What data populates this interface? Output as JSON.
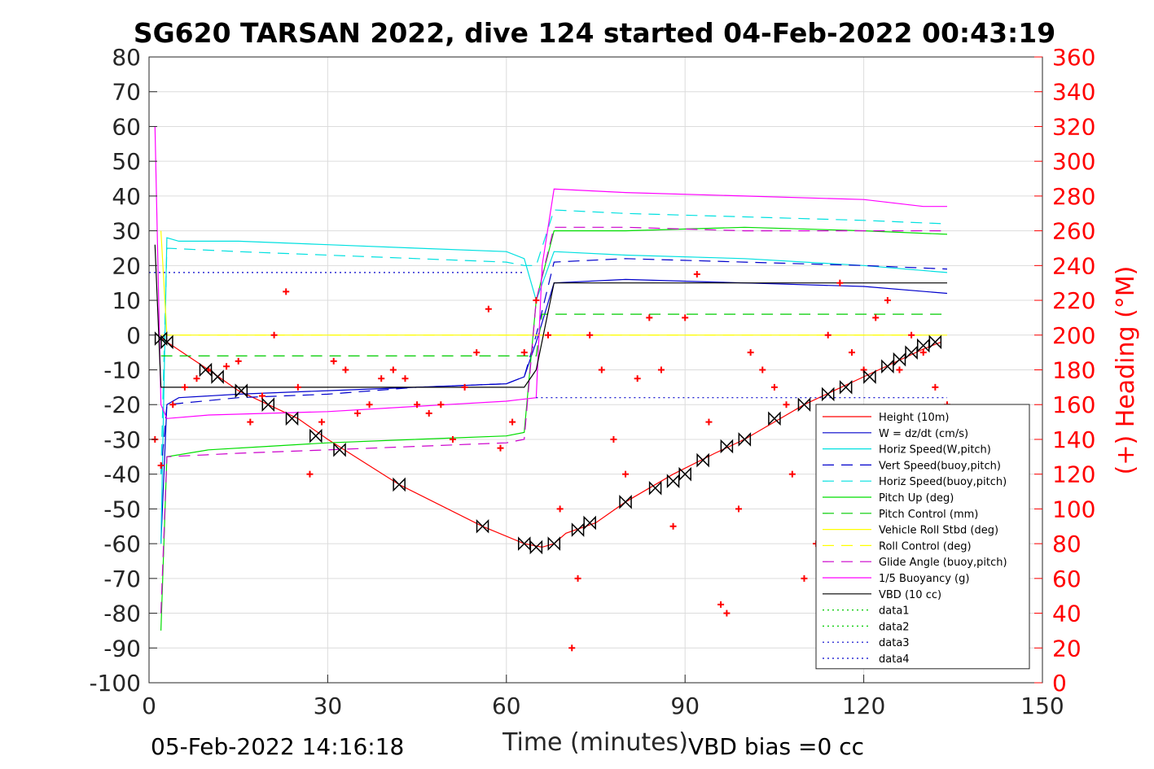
{
  "chart_data": {
    "type": "line",
    "title": "SG620 TARSAN 2022, dive 124 started 04-Feb-2022 00:43:19",
    "xlabel": "Time (minutes)",
    "ylabel": "",
    "y2label": "(+) Heading (°M)",
    "footer_left": "05-Feb-2022 14:16:18",
    "footer_right": "VBD bias =0 cc",
    "xlim": [
      0,
      150
    ],
    "ylim": [
      -100,
      80
    ],
    "y2lim": [
      0,
      360
    ],
    "x_ticks": [
      "0",
      "30",
      "60",
      "90",
      "120",
      "150"
    ],
    "y_ticks": [
      "80",
      "70",
      "60",
      "50",
      "40",
      "30",
      "20",
      "10",
      "0",
      "-10",
      "-20",
      "-30",
      "-40",
      "-50",
      "-60",
      "-70",
      "-80",
      "-90",
      "-100"
    ],
    "y2_ticks": [
      "360",
      "340",
      "320",
      "300",
      "280",
      "260",
      "240",
      "220",
      "200",
      "180",
      "160",
      "140",
      "120",
      "100",
      "80",
      "60",
      "40",
      "20",
      "0"
    ],
    "grid": true,
    "legend_position": "bottom-right",
    "series": [
      {
        "name": "Height (10m)",
        "color": "#ff0000",
        "style": "solid",
        "x": [
          2,
          3,
          10,
          15,
          20,
          25,
          30,
          42,
          56,
          63,
          66,
          68,
          70,
          75,
          80,
          88,
          95,
          100,
          110,
          115,
          120,
          125,
          130,
          133
        ],
        "y": [
          -1,
          -2,
          -10,
          -16,
          -20,
          -24,
          -30,
          -43,
          -55,
          -60,
          -61,
          -60,
          -57,
          -54,
          -48,
          -40,
          -34,
          -30,
          -20,
          -16,
          -12,
          -8,
          -4,
          -2
        ]
      },
      {
        "name": "W = dz/dt (cm/s)",
        "color": "#0000cc",
        "style": "solid",
        "x": [
          2,
          3,
          5,
          15,
          30,
          45,
          60,
          63,
          65,
          68,
          80,
          100,
          120,
          134
        ],
        "y": [
          -60,
          -20,
          -18,
          -17,
          -16,
          -15,
          -14,
          -12,
          -2,
          15,
          16,
          15,
          14,
          12
        ]
      },
      {
        "name": "Horiz Speed(W,pitch)",
        "color": "#00e0e0",
        "style": "solid",
        "x": [
          2,
          3,
          5,
          15,
          30,
          45,
          60,
          63,
          65,
          68,
          80,
          100,
          120,
          134
        ],
        "y": [
          -60,
          28,
          27,
          27,
          26,
          25,
          24,
          22,
          10,
          24,
          23,
          22,
          20,
          18
        ]
      },
      {
        "name": "Vert Speed(buoy,pitch)",
        "color": "#0000cc",
        "style": "dashed",
        "x": [
          2,
          3,
          15,
          30,
          45,
          60,
          63,
          65,
          68,
          80,
          100,
          120,
          134
        ],
        "y": [
          -40,
          -20,
          -18,
          -17,
          -15,
          -14,
          -12,
          0,
          21,
          22,
          21,
          20,
          19
        ]
      },
      {
        "name": "Horiz Speed(buoy,pitch)",
        "color": "#00e0e0",
        "style": "dashed",
        "x": [
          2,
          3,
          15,
          30,
          45,
          60,
          63,
          65,
          68,
          80,
          100,
          120,
          134
        ],
        "y": [
          -40,
          25,
          24,
          23,
          22,
          21,
          20,
          20,
          36,
          35,
          34,
          33,
          32
        ]
      },
      {
        "name": "Pitch Up (deg)",
        "color": "#00dd00",
        "style": "solid",
        "x": [
          2,
          3,
          10,
          20,
          30,
          45,
          60,
          63,
          65,
          68,
          80,
          100,
          120,
          134
        ],
        "y": [
          -85,
          -35,
          -33,
          -32,
          -31,
          -30,
          -29,
          -28,
          10,
          30,
          30,
          31,
          30,
          29
        ]
      },
      {
        "name": "Pitch Control (mm)",
        "color": "#00cc00",
        "style": "dashed",
        "x": [
          2,
          65,
          66,
          134
        ],
        "y": [
          -6,
          -6,
          6,
          6
        ]
      },
      {
        "name": "Vehicle Roll Stbd (deg)",
        "color": "#ffff00",
        "style": "solid",
        "x": [
          2,
          3,
          10,
          20,
          30,
          40,
          50,
          60,
          63,
          70,
          80,
          90,
          100,
          110,
          120,
          130,
          134
        ],
        "y": [
          30,
          0,
          0,
          0,
          0,
          0,
          0,
          0,
          0,
          0,
          0,
          0,
          0,
          0,
          0,
          0,
          0
        ]
      },
      {
        "name": "Roll Control (deg)",
        "color": "#ffff00",
        "style": "dashed",
        "x": [
          2,
          134
        ],
        "y": [
          0,
          0
        ]
      },
      {
        "name": "Glide Angle (buoy,pitch)",
        "color": "#cc00cc",
        "style": "dashed",
        "x": [
          2,
          3,
          15,
          30,
          45,
          60,
          63,
          65,
          68,
          80,
          100,
          120,
          134
        ],
        "y": [
          -80,
          -35,
          -34,
          -33,
          -32,
          -31,
          -30,
          10,
          31,
          31,
          30,
          30,
          30
        ]
      },
      {
        "name": "1/5 Buoyancy (g)",
        "color": "#ff00ff",
        "style": "solid",
        "x": [
          1,
          2,
          3,
          10,
          30,
          50,
          60,
          65,
          66,
          68,
          80,
          100,
          120,
          130,
          134
        ],
        "y": [
          60,
          -20,
          -24,
          -23,
          -22,
          -20,
          -19,
          -18,
          20,
          42,
          41,
          40,
          39,
          37,
          37
        ]
      },
      {
        "name": "VBD (10 cc)",
        "color": "#000000",
        "style": "solid",
        "x": [
          1,
          2,
          3,
          63,
          65,
          68,
          134
        ],
        "y": [
          26,
          -15,
          -15,
          -15,
          -10,
          15,
          15
        ]
      },
      {
        "name": "data1",
        "color": "#00cc00",
        "style": "dotted",
        "x": [],
        "y": []
      },
      {
        "name": "data2",
        "color": "#00cc00",
        "style": "dotted",
        "x": [],
        "y": []
      },
      {
        "name": "data3",
        "color": "#0000cc",
        "style": "dotted",
        "x": [
          0,
          63
        ],
        "y": [
          18,
          18
        ]
      },
      {
        "name": "data4",
        "color": "#0000cc",
        "style": "dotted",
        "x": [
          65,
          134
        ],
        "y": [
          -18,
          -18
        ]
      }
    ],
    "heading": {
      "color": "#ff0000",
      "marker": "+",
      "x": [
        1,
        2,
        4,
        6,
        8,
        10,
        13,
        15,
        17,
        19,
        21,
        23,
        25,
        27,
        29,
        31,
        33,
        35,
        37,
        39,
        41,
        43,
        45,
        47,
        49,
        51,
        53,
        55,
        57,
        59,
        61,
        63,
        65,
        67,
        69,
        71,
        72,
        74,
        76,
        78,
        80,
        82,
        84,
        86,
        88,
        90,
        92,
        94,
        96,
        97,
        99,
        101,
        103,
        105,
        107,
        108,
        110,
        112,
        114,
        116,
        118,
        120,
        122,
        124,
        126,
        128,
        130,
        132,
        134
      ],
      "y": [
        140,
        125,
        160,
        170,
        175,
        180,
        182,
        185,
        150,
        165,
        200,
        225,
        170,
        120,
        150,
        185,
        180,
        155,
        160,
        175,
        180,
        175,
        160,
        155,
        160,
        140,
        170,
        190,
        215,
        135,
        150,
        190,
        220,
        200,
        100,
        20,
        60,
        200,
        180,
        140,
        120,
        175,
        210,
        180,
        90,
        210,
        235,
        150,
        45,
        40,
        100,
        190,
        180,
        170,
        160,
        120,
        60,
        80,
        200,
        230,
        190,
        180,
        210,
        220,
        180,
        200,
        190,
        170,
        160
      ]
    },
    "vbd_markers": {
      "color": "#000000",
      "marker": "bowtie",
      "x": [
        2,
        3,
        9.5,
        11.5,
        15.5,
        20,
        24,
        28,
        32,
        42,
        56,
        63,
        65,
        68,
        72,
        74,
        80,
        85,
        88,
        90,
        93,
        97,
        100,
        105,
        110,
        114,
        117,
        121,
        124,
        126,
        128,
        130,
        132
      ],
      "y": [
        -1,
        -2,
        -10,
        -12,
        -16,
        -20,
        -24,
        -29,
        -33,
        -43,
        -55,
        -60,
        -61,
        -60,
        -56,
        -54,
        -48,
        -44,
        -42,
        -40,
        -36,
        -32,
        -30,
        -24,
        -20,
        -17,
        -15,
        -12,
        -9,
        -7,
        -5,
        -3,
        -2
      ]
    }
  }
}
